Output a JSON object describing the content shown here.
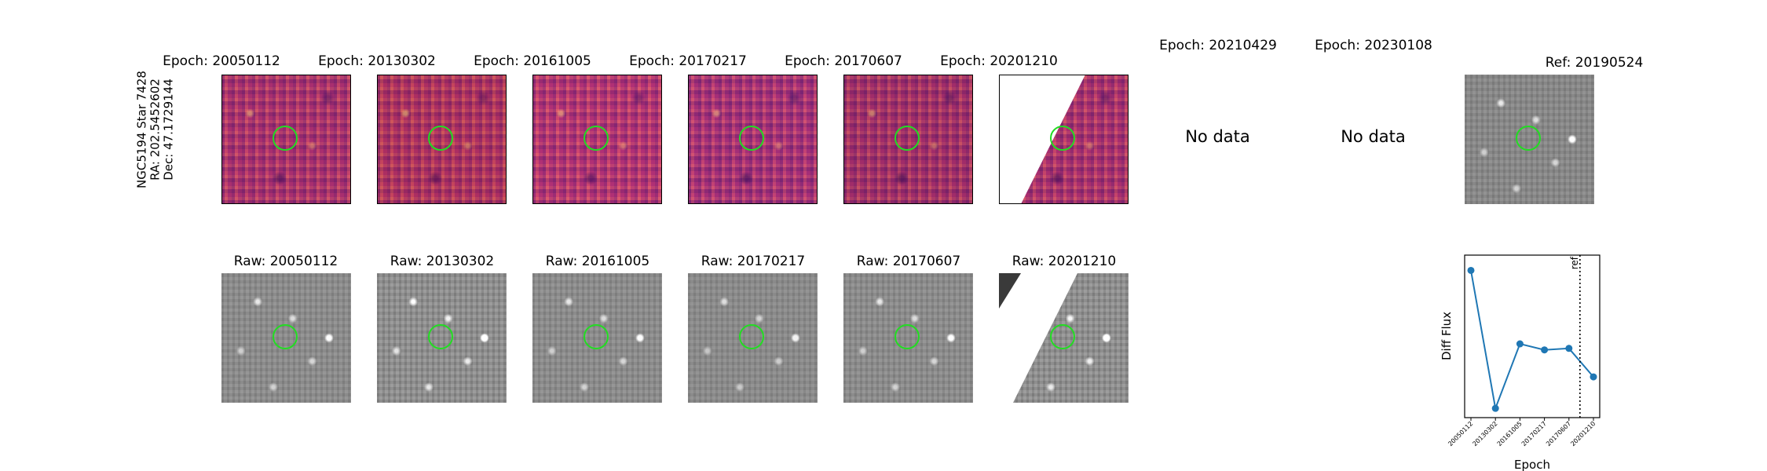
{
  "object": {
    "name": "NGC5194 Star 7428",
    "ra": "RA: 202.5452602",
    "dec": "Dec: 47.1729144"
  },
  "diff_titles": [
    "Epoch: 20050112",
    "Epoch: 20130302",
    "Epoch: 20161005",
    "Epoch: 20170217",
    "Epoch: 20170607",
    "Epoch: 20201210",
    "Epoch: 20210429",
    "Epoch: 20230108"
  ],
  "raw_titles": [
    "Raw: 20050112",
    "Raw: 20130302",
    "Raw: 20161005",
    "Raw: 20170217",
    "Raw: 20170607",
    "Raw: 20201210"
  ],
  "ref_title": "Ref: 20190524",
  "no_data": "No data",
  "colors": {
    "line": "#1f77b4",
    "ring": "#22dd22"
  },
  "chart_data": {
    "type": "line",
    "categories": [
      "20050112",
      "20130302",
      "20161005",
      "20170217",
      "20170607",
      "20201210"
    ],
    "values": [
      0.94,
      0.02,
      0.45,
      0.41,
      0.42,
      0.23
    ],
    "xlabel": "Epoch",
    "ylabel": "Diff Flux",
    "ref_marker": {
      "label": "ref",
      "position_between": [
        "20170607",
        "20201210"
      ]
    },
    "yticks": "none",
    "grid": false
  }
}
